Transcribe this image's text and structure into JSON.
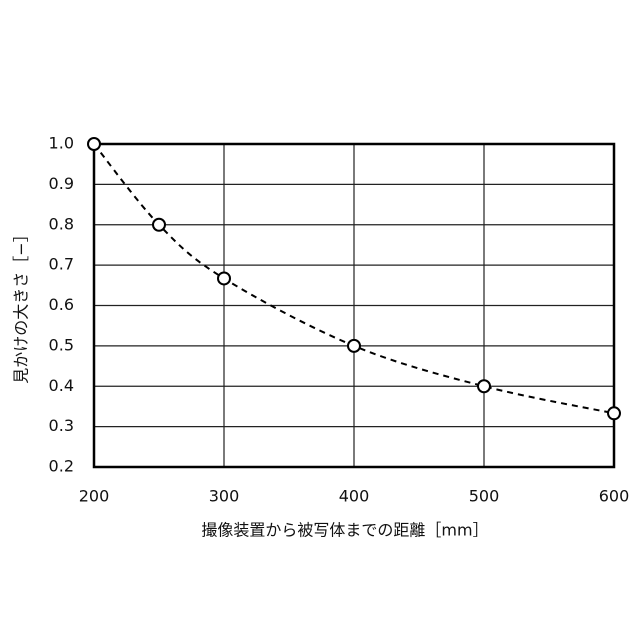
{
  "chart_data": {
    "type": "line",
    "xlabel": "撮像装置から被写体までの距離［mm］",
    "ylabel": "見かけの大きさ［−］",
    "x": [
      200,
      250,
      300,
      400,
      500,
      600
    ],
    "series": [
      {
        "values": [
          1.0,
          0.8,
          0.667,
          0.5,
          0.4,
          0.333
        ],
        "color": "#000000"
      }
    ],
    "xlim": [
      200,
      600
    ],
    "xticks": [
      200,
      300,
      400,
      500,
      600
    ],
    "ylim": [
      0.2,
      1.0
    ],
    "yticks": [
      0.2,
      0.3,
      0.4,
      0.5,
      0.6,
      0.7,
      0.8,
      0.9,
      {
        "value": 1,
        "label": "1.0"
      }
    ],
    "grid": true,
    "line_style": "dashed",
    "markers": true
  }
}
